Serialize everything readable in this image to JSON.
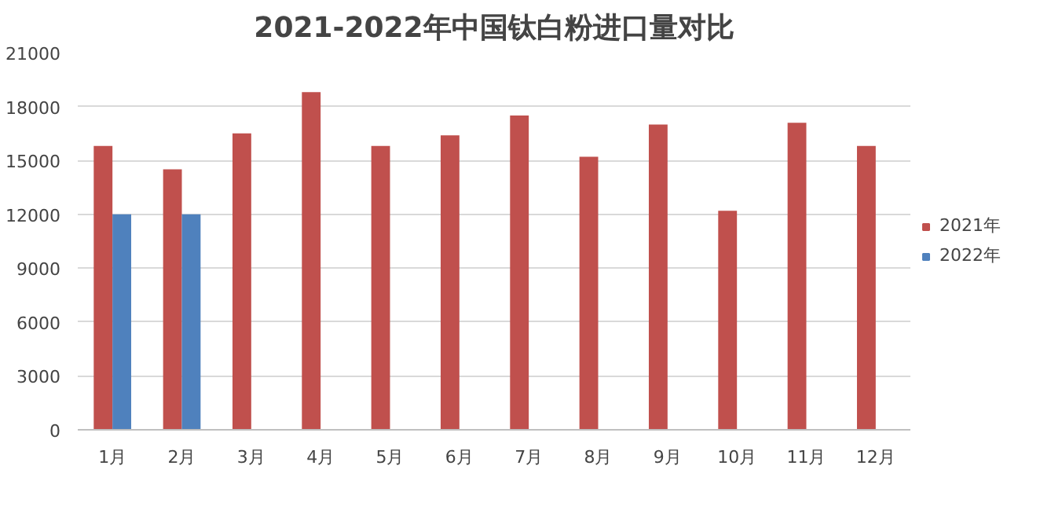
{
  "chart_data": {
    "type": "bar",
    "title": "2021-2022年中国钛白粉进口量对比",
    "categories": [
      "1月",
      "2月",
      "3月",
      "4月",
      "5月",
      "6月",
      "7月",
      "8月",
      "9月",
      "10月",
      "11月",
      "12月"
    ],
    "series": [
      {
        "name": "2021年",
        "color": "#c0504d",
        "values": [
          15800,
          14500,
          16500,
          18800,
          15800,
          16400,
          17500,
          15200,
          17000,
          12200,
          17100,
          15800
        ]
      },
      {
        "name": "2022年",
        "color": "#4f81bd",
        "values": [
          12000,
          12000,
          null,
          null,
          null,
          null,
          null,
          null,
          null,
          null,
          null,
          null
        ]
      }
    ],
    "ylim": [
      0,
      21000
    ],
    "yticks": [
      0,
      3000,
      6000,
      9000,
      12000,
      15000,
      18000,
      21000
    ],
    "grid": "y",
    "legend": "right"
  }
}
